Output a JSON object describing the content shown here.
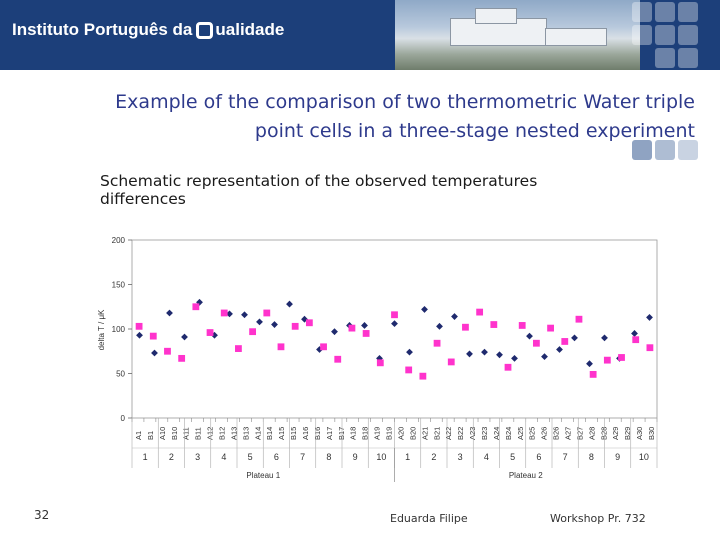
{
  "header": {
    "brand_pre": "Instituto Português da",
    "brand_post": "ualidade"
  },
  "slide": {
    "title_line1": "Example of the comparison of two thermometric Water triple",
    "title_line2": "point cells in a three-stage nested experiment",
    "subtitle_line1": "Schematic representation of the observed temperatures",
    "subtitle_line2": "differences"
  },
  "footer": {
    "page_number": "32",
    "author": "Eduarda Filipe",
    "workshop": "Workshop Pr. 732"
  },
  "colors": {
    "banner": "#1c3f7a",
    "series_a": "#1f2a6e",
    "series_b": "#ff33cc",
    "title": "#2e3a8c"
  },
  "chart_data": {
    "type": "scatter",
    "title": "",
    "ylabel": "delta T / μK",
    "ylim": [
      0,
      200
    ],
    "yticks": [
      0,
      50,
      100,
      150,
      200
    ],
    "grid": false,
    "legend": "none",
    "categories": [
      "A1",
      "B1",
      "A10",
      "B10",
      "A11",
      "B11",
      "A12",
      "B12",
      "A13",
      "B13",
      "A14",
      "B14",
      "A15",
      "B15",
      "A16",
      "B16",
      "A17",
      "B17",
      "A18",
      "B18",
      "A19",
      "B19",
      "A20",
      "B20",
      "A21",
      "B21",
      "A22",
      "B22",
      "A23",
      "B23",
      "A24",
      "B24",
      "A25",
      "B25",
      "A26",
      "B26",
      "A27",
      "B27",
      "A28",
      "B28",
      "A29",
      "B29",
      "A30",
      "B30"
    ],
    "groups": [
      "1",
      "2",
      "3",
      "4",
      "5",
      "6",
      "7",
      "8",
      "9",
      "10",
      "1",
      "2",
      "3",
      "4",
      "5",
      "6",
      "7",
      "8",
      "9",
      "10"
    ],
    "plateaus": [
      "Plateau 1",
      "Plateau 2"
    ],
    "series": [
      {
        "name": "Cell A",
        "marker": "diamond",
        "values": [
          93,
          73,
          118,
          91,
          130,
          93,
          117,
          116,
          108,
          105,
          128,
          111,
          77,
          97,
          104,
          104,
          67,
          106,
          74,
          122,
          103,
          114,
          72,
          74,
          71,
          67,
          92,
          69,
          77,
          90,
          61,
          90,
          67,
          95,
          113
        ]
      },
      {
        "name": "Cell B",
        "marker": "square",
        "values": [
          103,
          92,
          75,
          67,
          125,
          96,
          118,
          78,
          97,
          118,
          80,
          103,
          107,
          80,
          66,
          101,
          95,
          62,
          116,
          54,
          47,
          84,
          63,
          102,
          119,
          105,
          57,
          104,
          84,
          101,
          86,
          111,
          49,
          65,
          68,
          88,
          79
        ]
      }
    ]
  }
}
